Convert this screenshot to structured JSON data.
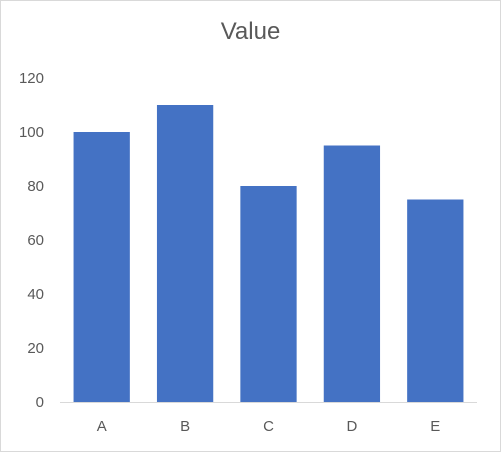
{
  "chart_data": {
    "type": "bar",
    "title": "Value",
    "categories": [
      "A",
      "B",
      "C",
      "D",
      "E"
    ],
    "values": [
      100,
      110,
      80,
      95,
      75
    ],
    "ylim": [
      0,
      120
    ],
    "yticks": [
      0,
      20,
      40,
      60,
      80,
      100,
      120
    ],
    "xlabel": "",
    "ylabel": "",
    "grid": false,
    "legend": "none",
    "bar_color": "#4472c4",
    "axis_color": "#d9d9d9",
    "text_color": "#595959"
  }
}
